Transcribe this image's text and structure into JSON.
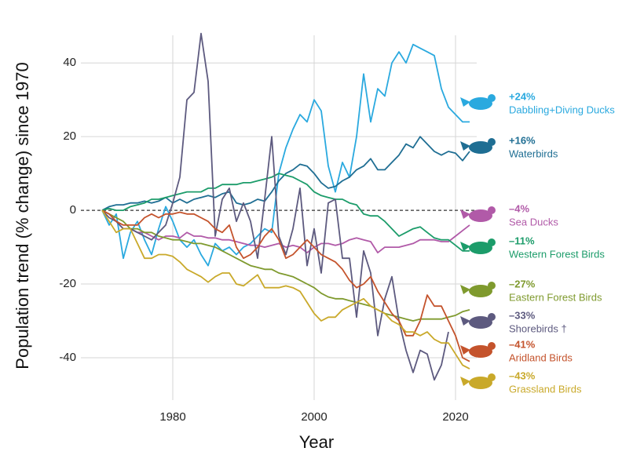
{
  "chart_data": {
    "type": "line",
    "y_label": "Population trend (% change) since 1970",
    "x_label": "Year",
    "x": [
      1970,
      1971,
      1972,
      1973,
      1974,
      1975,
      1976,
      1977,
      1978,
      1979,
      1980,
      1981,
      1982,
      1983,
      1984,
      1985,
      1986,
      1987,
      1988,
      1989,
      1990,
      1991,
      1992,
      1993,
      1994,
      1995,
      1996,
      1997,
      1998,
      1999,
      2000,
      2001,
      2002,
      2003,
      2004,
      2005,
      2006,
      2007,
      2008,
      2009,
      2010,
      2011,
      2012,
      2013,
      2014,
      2015,
      2016,
      2017,
      2018,
      2019,
      2020,
      2021,
      2022
    ],
    "xlim": [
      1967,
      2023
    ],
    "xticks": [
      1980,
      2000,
      2020
    ],
    "ylim": [
      -51.5,
      47.5
    ],
    "yticks": [
      -40,
      -20,
      0,
      20,
      40
    ],
    "grid": true,
    "reference_line": 0,
    "series": [
      {
        "name": "Dabbling+Diving Ducks",
        "label": "+24%",
        "color": "#2aa9df",
        "values": [
          0,
          -4,
          -1,
          -13,
          -6,
          -3,
          -8,
          -12,
          -5,
          1,
          -3,
          -8,
          -10,
          -8,
          -12,
          -15,
          -9,
          -11,
          -10,
          -12,
          -10,
          -9,
          -7,
          -5,
          -6,
          10,
          17,
          22,
          26,
          24,
          30,
          27,
          12,
          5,
          13,
          9,
          20,
          37,
          24,
          33,
          31,
          40,
          43,
          40,
          45,
          44,
          43,
          42,
          33,
          28,
          26,
          24,
          24
        ]
      },
      {
        "name": "Waterbirds",
        "label": "+16%",
        "color": "#1f6e93",
        "values": [
          0,
          1,
          1.5,
          1.5,
          2,
          2,
          2.5,
          2,
          2.5,
          3.5,
          2,
          3,
          2,
          3,
          3.5,
          4,
          3.5,
          4.5,
          5,
          2,
          1.5,
          2,
          3,
          2.5,
          5,
          8,
          10,
          11,
          12.5,
          12,
          10,
          7.5,
          6,
          6.5,
          8,
          9,
          11,
          12,
          14,
          11,
          11,
          13,
          15,
          18,
          17,
          20,
          18,
          16,
          15,
          16,
          15.5,
          13.5,
          16
        ]
      },
      {
        "name": "Sea Ducks",
        "label": "–4%",
        "color": "#b15aa8",
        "values": [
          0,
          -1,
          -3,
          -5,
          -5,
          -6,
          -6,
          -7,
          -8,
          -7,
          -7,
          -7.5,
          -6,
          -7,
          -7,
          -7.5,
          -7.5,
          -8,
          -8,
          -8.5,
          -9,
          -9.5,
          -9.5,
          -10,
          -9.5,
          -9,
          -10,
          -9.5,
          -10,
          -11.5,
          -10,
          -9,
          -9,
          -9.5,
          -9,
          -8,
          -7.5,
          -8,
          -8.5,
          -11.5,
          -10,
          -10,
          -10,
          -9.5,
          -9,
          -8,
          -8,
          -8,
          -8.5,
          -8.5,
          -7,
          -5.5,
          -4
        ]
      },
      {
        "name": "Western Forest Birds",
        "label": "–11%",
        "color": "#1c9c6a",
        "values": [
          0,
          0.5,
          0,
          0,
          1,
          1.5,
          2,
          3,
          3,
          3.5,
          4,
          4.5,
          5,
          5,
          5,
          6,
          6,
          7,
          7,
          7,
          7.5,
          7.5,
          8,
          8.5,
          9,
          10,
          9.5,
          9,
          8,
          7,
          5,
          4,
          3.5,
          3,
          3,
          2,
          1.5,
          -1,
          -1.5,
          -1.5,
          -3,
          -5,
          -7,
          -6,
          -5,
          -4.5,
          -6,
          -7.5,
          -8,
          -8,
          -9.5,
          -11,
          -11
        ]
      },
      {
        "name": "Eastern Forest Birds",
        "label": "–27%",
        "color": "#7f9a2e",
        "values": [
          0,
          -1,
          -2,
          -3,
          -5,
          -5,
          -6,
          -6,
          -7,
          -7.5,
          -8,
          -8,
          -8.5,
          -9,
          -9,
          -9.5,
          -10,
          -11,
          -12,
          -13,
          -14,
          -15,
          -15.5,
          -16,
          -16,
          -17,
          -17.5,
          -18,
          -19,
          -20,
          -21,
          -22.5,
          -23.5,
          -24,
          -24,
          -24.5,
          -25,
          -25.5,
          -26,
          -27,
          -28,
          -28.5,
          -29,
          -29.5,
          -30,
          -29.5,
          -29.5,
          -29.5,
          -29.5,
          -29,
          -28.5,
          -27.5,
          -27
        ]
      },
      {
        "name": "Shorebirds †",
        "label": "–33%",
        "color": "#5d5a7f",
        "values": [
          0,
          -2,
          -3,
          -5,
          -5,
          -6,
          -7,
          -8,
          -6,
          -4,
          2,
          9,
          30,
          32,
          48,
          35,
          -7,
          3,
          6,
          -3,
          2,
          -3,
          -13,
          3,
          20,
          -7,
          -12,
          -5,
          6,
          -15,
          -5,
          -17,
          2,
          3,
          -13,
          -13,
          -29,
          -11,
          -17,
          -34,
          -24,
          -18,
          -30,
          -38,
          -44,
          -38,
          -39,
          -46,
          -42,
          -33,
          null,
          null,
          null
        ]
      },
      {
        "name": "Aridland Birds",
        "label": "–41%",
        "color": "#c4532c",
        "values": [
          0,
          -1,
          -3,
          -4,
          -4,
          -4,
          -2,
          -1,
          -2,
          -1,
          -1,
          -0.5,
          -1,
          -1,
          -2,
          -3,
          -5,
          -6,
          -4,
          -10,
          -13,
          -12,
          -10,
          -7,
          -5,
          -8,
          -13,
          -12,
          -10,
          -8,
          -10,
          -12,
          -13,
          -14,
          -16,
          -19,
          -21,
          -20,
          -18,
          -22,
          -25,
          -28,
          -30,
          -34,
          -34,
          -30,
          -23,
          -26,
          -26,
          -30,
          -34,
          -40,
          -41
        ]
      },
      {
        "name": "Grassland Birds",
        "label": "–43%",
        "color": "#c9a92a",
        "values": [
          0,
          -3,
          -6,
          -5,
          -5,
          -9,
          -13,
          -13,
          -12,
          -12,
          -12.5,
          -14,
          -16,
          -17,
          -18,
          -19.5,
          -18,
          -17,
          -17,
          -20,
          -20.5,
          -19,
          -17.5,
          -21,
          -21,
          -21,
          -20.5,
          -21,
          -22,
          -25,
          -28,
          -30,
          -29,
          -29,
          -27,
          -26,
          -25,
          -24,
          -26,
          -27,
          -28,
          -30,
          -31,
          -33,
          -33,
          -34,
          -33,
          -35,
          -36,
          -36,
          -39,
          -42,
          -43
        ]
      }
    ]
  }
}
